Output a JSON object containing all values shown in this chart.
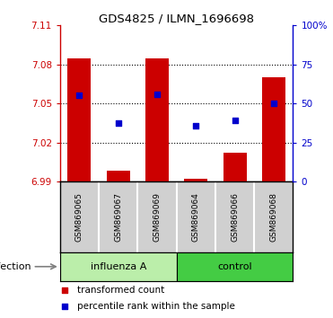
{
  "title": "GDS4825 / ILMN_1696698",
  "samples": [
    "GSM869065",
    "GSM869067",
    "GSM869069",
    "GSM869064",
    "GSM869066",
    "GSM869068"
  ],
  "group_labels": [
    "influenza A",
    "control"
  ],
  "bar_values": [
    7.085,
    6.998,
    7.085,
    6.992,
    7.012,
    7.07
  ],
  "bar_base": 6.99,
  "percentile_values": [
    7.056,
    7.035,
    7.057,
    7.033,
    7.037,
    7.05
  ],
  "ylim_left": [
    6.99,
    7.11
  ],
  "ylim_right": [
    0,
    100
  ],
  "yticks_left": [
    6.99,
    7.02,
    7.05,
    7.08,
    7.11
  ],
  "ytick_labels_left": [
    "6.99",
    "7.02",
    "7.05",
    "7.08",
    "7.11"
  ],
  "yticks_right": [
    0,
    25,
    50,
    75,
    100
  ],
  "ytick_labels_right": [
    "0",
    "25",
    "50",
    "75",
    "100%"
  ],
  "bar_color": "#cc0000",
  "dot_color": "#0000cc",
  "axis_color_left": "#cc0000",
  "axis_color_right": "#0000cc",
  "infection_label": "infection",
  "legend_bar_label": "transformed count",
  "legend_dot_label": "percentile rank within the sample",
  "bar_width": 0.6,
  "influenza_bg": "#bbeeaa",
  "control_bg": "#44cc44",
  "sample_box_bg": "#d0d0d0",
  "gridline_color": "#333333"
}
